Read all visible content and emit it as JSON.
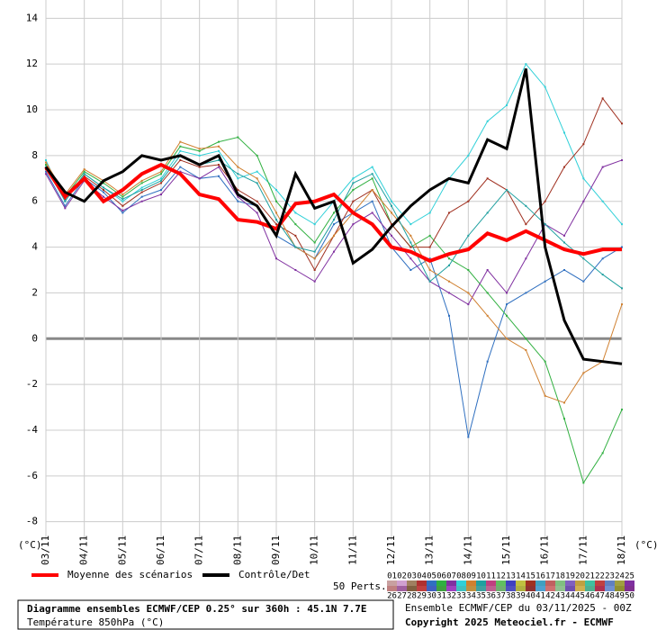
{
  "chart_data": {
    "type": "line",
    "xlim": [
      0,
      15
    ],
    "xticks": [
      {
        "value": 0,
        "label": "03/11"
      },
      {
        "value": 1,
        "label": "04/11"
      },
      {
        "value": 2,
        "label": "05/11"
      },
      {
        "value": 3,
        "label": "06/11"
      },
      {
        "value": 4,
        "label": "07/11"
      },
      {
        "value": 5,
        "label": "08/11"
      },
      {
        "value": 6,
        "label": "09/11"
      },
      {
        "value": 7,
        "label": "10/11"
      },
      {
        "value": 8,
        "label": "11/11"
      },
      {
        "value": 9,
        "label": "12/11"
      },
      {
        "value": 10,
        "label": "13/11"
      },
      {
        "value": 11,
        "label": "14/11"
      },
      {
        "value": 12,
        "label": "15/11"
      },
      {
        "value": 13,
        "label": "16/11"
      },
      {
        "value": 14,
        "label": "17/11"
      },
      {
        "value": 15,
        "label": "18/11"
      }
    ],
    "ylim": [
      -8.8,
      14.8
    ],
    "yticks": [
      -8,
      -6,
      -4,
      -2,
      0,
      2,
      4,
      6,
      8,
      10,
      12,
      14
    ],
    "grid": true,
    "unit_left": "(°C)",
    "unit_right": "(°C)",
    "x": [
      0,
      0.5,
      1,
      1.5,
      2,
      2.5,
      3,
      3.5,
      4,
      4.5,
      5,
      5.5,
      6,
      6.5,
      7,
      7.5,
      8,
      8.5,
      9,
      9.5,
      10,
      10.5,
      11,
      11.5,
      12,
      12.5,
      13,
      13.5,
      14,
      14.5,
      15
    ],
    "perturbations": [
      {
        "color": "#30d0d8",
        "values": [
          7.8,
          6.0,
          7.2,
          6.6,
          6.0,
          6.6,
          7.0,
          8.2,
          8.0,
          8.2,
          7.0,
          7.3,
          6.5,
          5.5,
          5.0,
          6.0,
          7.0,
          7.5,
          6.0,
          5.0,
          5.5,
          7.0,
          8.0,
          9.5,
          10.2,
          12.0,
          11.0,
          9.0,
          7.0,
          6.0,
          5.0
        ]
      },
      {
        "color": "#3070c0",
        "values": [
          7.3,
          5.8,
          7.0,
          6.4,
          5.5,
          6.2,
          6.5,
          7.5,
          7.0,
          7.1,
          6.0,
          5.8,
          4.5,
          4.0,
          3.5,
          5.0,
          5.5,
          6.0,
          4.0,
          3.0,
          3.5,
          1.0,
          -4.3,
          -1.0,
          1.5,
          2.0,
          2.5,
          3.0,
          2.5,
          3.5,
          4.0
        ]
      },
      {
        "color": "#30b040",
        "values": [
          7.6,
          6.2,
          7.3,
          6.8,
          6.2,
          6.8,
          7.2,
          8.4,
          8.2,
          8.6,
          8.8,
          8.0,
          6.0,
          5.0,
          4.2,
          5.5,
          6.5,
          7.0,
          5.0,
          4.0,
          4.5,
          3.5,
          3.0,
          2.0,
          1.0,
          0.0,
          -1.0,
          -3.5,
          -6.3,
          -5.0,
          -3.1
        ]
      },
      {
        "color": "#a03020",
        "values": [
          7.4,
          6.1,
          7.1,
          6.5,
          5.8,
          6.4,
          6.8,
          7.8,
          7.5,
          7.6,
          6.5,
          6.0,
          5.0,
          4.5,
          3.0,
          4.5,
          6.0,
          6.5,
          5.0,
          4.0,
          4.0,
          5.5,
          6.0,
          7.0,
          6.5,
          5.0,
          6.0,
          7.5,
          8.5,
          10.5,
          9.4
        ]
      },
      {
        "color": "#8030a0",
        "values": [
          7.2,
          5.7,
          6.9,
          6.2,
          5.6,
          6.0,
          6.3,
          7.3,
          7.0,
          7.5,
          6.2,
          5.5,
          3.5,
          3.0,
          2.5,
          3.8,
          5.0,
          5.5,
          4.5,
          3.5,
          2.5,
          2.0,
          1.5,
          3.0,
          2.0,
          3.5,
          5.0,
          4.5,
          6.0,
          7.5,
          7.8
        ]
      },
      {
        "color": "#d08030",
        "values": [
          7.7,
          6.3,
          7.4,
          6.9,
          6.3,
          6.9,
          7.3,
          8.6,
          8.3,
          8.4,
          7.5,
          7.0,
          5.5,
          4.0,
          3.5,
          4.5,
          5.5,
          6.5,
          5.5,
          4.5,
          3.0,
          2.5,
          2.0,
          1.0,
          0.0,
          -0.5,
          -2.5,
          -2.8,
          -1.5,
          -1.0,
          1.5
        ]
      },
      {
        "color": "#20a0a0",
        "values": [
          7.5,
          6.0,
          7.2,
          6.6,
          6.1,
          6.5,
          6.9,
          8.0,
          7.6,
          7.8,
          7.2,
          6.8,
          5.2,
          4.0,
          3.8,
          5.2,
          6.8,
          7.2,
          5.8,
          4.2,
          2.5,
          3.2,
          4.5,
          5.5,
          6.5,
          5.8,
          5.0,
          4.2,
          3.5,
          2.8,
          2.2
        ]
      }
    ],
    "series": [
      {
        "name": "Moyenne des scénarios",
        "color": "#ff0000",
        "values": [
          7.5,
          6.2,
          7.0,
          6.0,
          6.5,
          7.2,
          7.6,
          7.2,
          6.3,
          6.1,
          5.2,
          5.1,
          4.8,
          5.9,
          6.0,
          6.3,
          5.5,
          5.0,
          4.0,
          3.8,
          3.4,
          3.7,
          3.9,
          4.6,
          4.3,
          4.7,
          4.3,
          3.9,
          3.7,
          3.9,
          3.9
        ]
      },
      {
        "name": "Contrôle/Det",
        "color": "#000000",
        "values": [
          7.5,
          6.4,
          6.0,
          6.9,
          7.3,
          8.0,
          7.8,
          8.0,
          7.6,
          8.0,
          6.3,
          5.8,
          4.5,
          7.2,
          5.7,
          6.0,
          3.3,
          3.9,
          4.9,
          5.8,
          6.5,
          7.0,
          6.8,
          8.7,
          8.3,
          11.8,
          4.0,
          0.8,
          -0.9,
          -1.0,
          -1.1
        ]
      }
    ],
    "perts_label": "50 Perts.",
    "pert_numbers": [
      "01",
      "02",
      "03",
      "04",
      "05",
      "06",
      "07",
      "08",
      "09",
      "10",
      "11",
      "12",
      "13",
      "14",
      "15",
      "16",
      "17",
      "18",
      "19",
      "20",
      "21",
      "22",
      "23",
      "24",
      "25",
      "26",
      "27",
      "28",
      "29",
      "30",
      "31",
      "32",
      "33",
      "34",
      "35",
      "36",
      "37",
      "38",
      "39",
      "40",
      "41",
      "42",
      "43",
      "44",
      "45",
      "46",
      "47",
      "48",
      "49",
      "50"
    ],
    "pert_colors": [
      "#c8a0a0",
      "#d0a0d0",
      "#a08060",
      "#b03030",
      "#3070c0",
      "#30b040",
      "#8030a0",
      "#30d0d8",
      "#d08030",
      "#20a0a0",
      "#c04080",
      "#60c060",
      "#4040c0",
      "#c0c040",
      "#a03020",
      "#40a0c0",
      "#c06060",
      "#80c080",
      "#8060c0",
      "#c0a040",
      "#40c0a0",
      "#c04040",
      "#6080c0",
      "#a0a040",
      "#8030a0",
      "#c08080",
      "#a060a0",
      "#806040",
      "#c04040",
      "#4060c0",
      "#40a040",
      "#a040c0",
      "#40c0c0",
      "#c09040",
      "#40a0a0",
      "#c06090",
      "#70b070",
      "#5050c0",
      "#b0b040",
      "#903030",
      "#50a0d0",
      "#d07070",
      "#90c090",
      "#7050b0",
      "#d0b050",
      "#50b090",
      "#b03050",
      "#7090d0",
      "#909030",
      "#803090"
    ],
    "footer_title": "Diagramme ensembles ECMWF/CEP 0.25° sur 360h : 45.1N 7.7E",
    "footer_sub": "Température 850hPa (°C)",
    "run": "Ensemble ECMWF/CEP du 03/11/2025 - 00Z",
    "copyright": "Copyright 2025 Meteociel.fr - ECMWF"
  }
}
